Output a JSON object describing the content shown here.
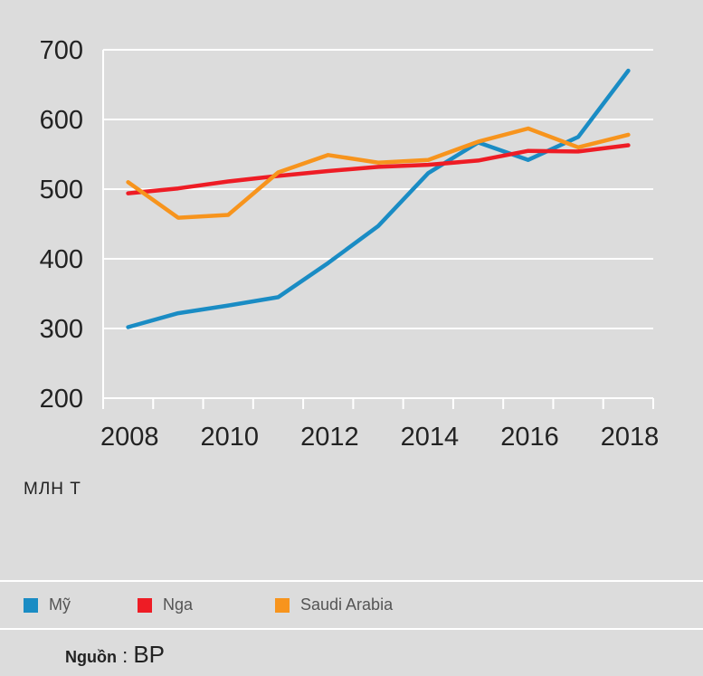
{
  "chart_data": {
    "type": "line",
    "x": [
      2007.5,
      2008.5,
      2009.5,
      2010.5,
      2011.5,
      2012.5,
      2013.5,
      2014.5,
      2015.5,
      2016.5,
      2017.5
    ],
    "x_ticks": [
      "2008",
      "2010",
      "2012",
      "2014",
      "2016",
      "2018"
    ],
    "y_ticks": [
      "700",
      "600",
      "500",
      "400",
      "300",
      "200"
    ],
    "ylim": [
      200,
      700
    ],
    "xlim": [
      2007,
      2018
    ],
    "ylabel": "МЛН Т",
    "grid": true,
    "series": [
      {
        "name": "Mỹ",
        "color": "#1a8cc4",
        "values": [
          302,
          322,
          333,
          345,
          394,
          447,
          523,
          567,
          542,
          575,
          670
        ]
      },
      {
        "name": "Nga",
        "color": "#ee1c25",
        "values": [
          494,
          501,
          511,
          519,
          526,
          532,
          535,
          541,
          555,
          554,
          563
        ]
      },
      {
        "name": "Saudi Arabia",
        "color": "#f7941d",
        "values": [
          510,
          459,
          463,
          524,
          549,
          538,
          542,
          568,
          587,
          560,
          578
        ]
      }
    ]
  },
  "legend": {
    "items": [
      {
        "label": "Mỹ",
        "color": "#1a8cc4"
      },
      {
        "label": "Nga",
        "color": "#ee1c25"
      },
      {
        "label": "Saudi Arabia",
        "color": "#f7941d"
      }
    ]
  },
  "source": {
    "key": "Nguồn",
    "sep": " : ",
    "value": "BP"
  }
}
